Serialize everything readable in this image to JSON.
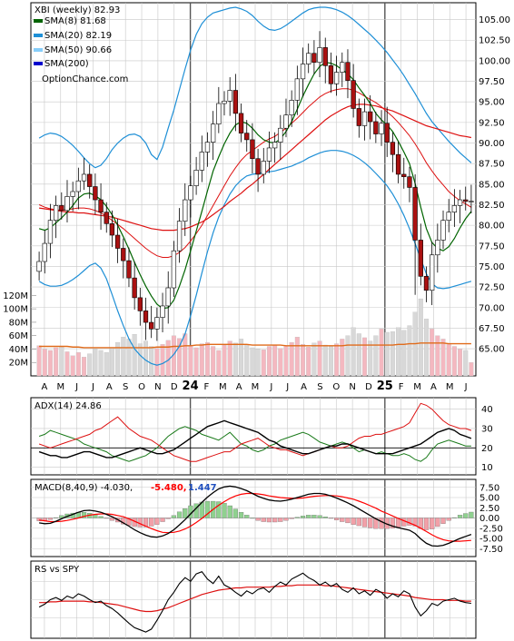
{
  "chart_data": [
    {
      "type": "candlestick",
      "panel": "price",
      "title": "XBI (weekly) 82.93",
      "watermark": "OptionChance.com",
      "legend_placement": "top-left",
      "legend": [
        {
          "label": "SMA(8) 81.68",
          "color": "#006400"
        },
        {
          "label": "SMA(20) 82.19",
          "color": "#1e8fd6"
        },
        {
          "label": "SMA(50) 90.66",
          "color": "#87cefa"
        },
        {
          "label": "SMA(200)",
          "color": "#0000cd"
        }
      ],
      "x_tick_labels": [
        "A",
        "M",
        "J",
        "J",
        "A",
        "S",
        "O",
        "N",
        "D",
        "24",
        "F",
        "M",
        "A",
        "M",
        "J",
        "J",
        "A",
        "S",
        "O",
        "N",
        "D",
        "25",
        "F",
        "M",
        "A",
        "M",
        "J"
      ],
      "y_tick_labels": [
        "65.00",
        "67.50",
        "70.00",
        "72.50",
        "75.00",
        "77.50",
        "80.00",
        "82.50",
        "85.00",
        "87.50",
        "90.00",
        "92.50",
        "95.00",
        "97.50",
        "100.00",
        "102.50",
        "105.00"
      ],
      "ylim": [
        62.8,
        106.5
      ],
      "grid": true,
      "close": [
        75.6,
        77.8,
        80.6,
        82.4,
        81.8,
        83.5,
        84.1,
        85.4,
        86.2,
        84.7,
        83.1,
        81.6,
        80.2,
        78.8,
        77.2,
        75.7,
        73.6,
        71.2,
        69.6,
        68.2,
        67.4,
        68.8,
        70.2,
        72.4,
        76.9,
        80.5,
        83.1,
        84.8,
        86.7,
        88.9,
        90.1,
        92.3,
        94.8,
        95.1,
        96.4,
        93.6,
        91.2,
        90.4,
        88.1,
        86.2,
        87.8,
        89.4,
        90.1,
        91.8,
        93.4,
        95.2,
        97.8,
        99.6,
        100.9,
        99.8,
        101.6,
        99.4,
        97.2,
        98.6,
        99.8,
        97.6,
        94.2,
        92.1,
        93.8,
        92.6,
        91.1,
        92.4,
        90.1,
        88.6,
        86.2,
        85.9,
        84.6,
        78.2,
        73.8,
        72.1,
        76.4,
        78.2,
        80.6,
        81.6,
        82.4,
        83.1,
        82.9,
        82.93
      ],
      "sma8": [
        79.6,
        79.4,
        79.7,
        80.3,
        80.9,
        81.6,
        82.4,
        83.3,
        83.8,
        83.9,
        83.6,
        83.1,
        82.3,
        81.3,
        80.0,
        78.6,
        77.1,
        75.5,
        74.0,
        72.6,
        71.4,
        70.4,
        69.9,
        70.0,
        70.9,
        72.6,
        74.6,
        76.9,
        79.3,
        81.7,
        84.2,
        86.6,
        88.3,
        89.9,
        91.2,
        92.2,
        92.6,
        92.4,
        91.8,
        91.0,
        90.4,
        90.1,
        90.0,
        90.5,
        91.4,
        92.6,
        94.1,
        95.7,
        97.1,
        98.4,
        99.3,
        99.8,
        99.7,
        99.4,
        98.9,
        98.4,
        97.7,
        96.7,
        95.8,
        94.8,
        93.6,
        92.8,
        92.2,
        91.4,
        90.2,
        88.9,
        87.5,
        85.1,
        82.2,
        79.6,
        77.9,
        77.2,
        76.9,
        77.4,
        78.4,
        79.7,
        80.8,
        81.68
      ],
      "sma20": [
        82.5,
        82.2,
        82.0,
        81.9,
        81.8,
        81.9,
        82.0,
        82.1,
        82.1,
        82.0,
        81.8,
        81.5,
        81.1,
        80.6,
        80.1,
        79.6,
        79.0,
        78.4,
        77.8,
        77.2,
        76.7,
        76.3,
        76.1,
        76.1,
        76.3,
        76.7,
        77.3,
        78.1,
        79.0,
        80.0,
        81.2,
        82.4,
        83.6,
        84.8,
        86.0,
        87.0,
        87.9,
        88.6,
        89.1,
        89.6,
        90.1,
        90.5,
        90.8,
        91.3,
        91.8,
        92.4,
        93.0,
        93.7,
        94.4,
        95.0,
        95.6,
        96.0,
        96.3,
        96.5,
        96.6,
        96.6,
        96.4,
        96.1,
        95.7,
        95.3,
        94.9,
        94.4,
        93.8,
        93.2,
        92.5,
        91.7,
        90.9,
        89.9,
        88.8,
        87.6,
        86.6,
        85.7,
        84.9,
        84.1,
        83.5,
        83.0,
        82.6,
        82.19
      ],
      "sma50": [
        82.1,
        82.0,
        81.9,
        81.8,
        81.7,
        81.6,
        81.6,
        81.5,
        81.5,
        81.4,
        81.3,
        81.2,
        81.1,
        81.0,
        80.8,
        80.6,
        80.4,
        80.2,
        80.0,
        79.8,
        79.6,
        79.5,
        79.4,
        79.4,
        79.4,
        79.5,
        79.6,
        79.8,
        80.1,
        80.4,
        80.8,
        81.3,
        81.8,
        82.3,
        82.9,
        83.4,
        83.9,
        84.5,
        85.0,
        85.6,
        86.2,
        86.8,
        87.4,
        88.0,
        88.6,
        89.2,
        89.8,
        90.4,
        91.0,
        91.6,
        92.2,
        92.8,
        93.3,
        93.7,
        94.1,
        94.4,
        94.6,
        94.7,
        94.7,
        94.6,
        94.5,
        94.3,
        94.1,
        93.9,
        93.6,
        93.3,
        93.0,
        92.7,
        92.4,
        92.1,
        91.9,
        91.7,
        91.5,
        91.3,
        91.1,
        90.9,
        90.8,
        90.66
      ],
      "bb_upper": [
        90.6,
        91.0,
        91.2,
        91.1,
        90.8,
        90.3,
        89.7,
        89.0,
        88.2,
        87.5,
        87.0,
        87.3,
        88.1,
        89.2,
        90.0,
        90.6,
        91.0,
        91.1,
        90.8,
        90.0,
        88.6,
        88.0,
        89.5,
        91.8,
        94.0,
        96.5,
        99.0,
        101.3,
        103.2,
        104.5,
        105.3,
        105.8,
        106.0,
        106.2,
        106.4,
        106.5,
        106.3,
        106.0,
        105.5,
        104.8,
        104.2,
        103.8,
        103.7,
        103.9,
        104.3,
        104.8,
        105.3,
        105.8,
        106.2,
        106.4,
        106.5,
        106.5,
        106.4,
        106.2,
        105.9,
        105.5,
        105.0,
        104.4,
        103.8,
        103.2,
        102.5,
        101.8,
        101.0,
        100.1,
        99.2,
        98.2,
        97.1,
        96.0,
        94.8,
        93.6,
        92.6,
        91.8,
        91.0,
        90.2,
        89.5,
        88.8,
        88.2,
        87.6
      ],
      "bb_lower": [
        73.2,
        72.8,
        72.6,
        72.6,
        72.7,
        73.0,
        73.4,
        73.9,
        74.5,
        75.1,
        75.4,
        74.8,
        73.5,
        71.6,
        69.6,
        67.8,
        66.2,
        65.0,
        64.2,
        63.6,
        63.2,
        63.0,
        63.2,
        63.6,
        64.3,
        65.3,
        66.8,
        69.0,
        71.5,
        74.2,
        76.8,
        79.1,
        81.0,
        82.5,
        83.8,
        84.8,
        85.5,
        86.0,
        86.2,
        86.3,
        86.4,
        86.5,
        86.6,
        86.8,
        87.0,
        87.2,
        87.5,
        87.8,
        88.2,
        88.5,
        88.8,
        89.0,
        89.1,
        89.1,
        89.0,
        88.8,
        88.5,
        88.1,
        87.6,
        87.0,
        86.3,
        85.6,
        84.8,
        83.8,
        82.6,
        81.2,
        79.6,
        77.8,
        75.9,
        74.1,
        72.9,
        72.4,
        72.3,
        72.4,
        72.6,
        72.8,
        73.0,
        73.2
      ]
    },
    {
      "type": "bar",
      "panel": "volume",
      "y_tick_labels": [
        "20M",
        "40M",
        "60M",
        "80M",
        "100M",
        "120M"
      ],
      "ylim": [
        0,
        130
      ],
      "volume_millions": [
        45,
        40,
        38,
        42,
        44,
        36,
        30,
        35,
        28,
        33,
        40,
        38,
        35,
        42,
        50,
        58,
        55,
        62,
        48,
        52,
        44,
        41,
        47,
        53,
        60,
        56,
        63,
        45,
        42,
        48,
        50,
        44,
        38,
        46,
        52,
        49,
        55,
        47,
        42,
        40,
        39,
        44,
        46,
        41,
        45,
        50,
        58,
        47,
        43,
        49,
        52,
        46,
        44,
        48,
        55,
        60,
        72,
        63,
        57,
        52,
        60,
        70,
        65,
        66,
        72,
        68,
        75,
        95,
        115,
        85,
        70,
        60,
        55,
        48,
        44,
        40,
        38,
        20
      ],
      "volume_sma": [
        44,
        44,
        44,
        44,
        44,
        44,
        43,
        43,
        42,
        42,
        42,
        42,
        42,
        42,
        42,
        42,
        42,
        42,
        42,
        42,
        42,
        43,
        43,
        43,
        44,
        44,
        45,
        45,
        46,
        46,
        47,
        47,
        47,
        47,
        47,
        47,
        47,
        47,
        46,
        46,
        46,
        46,
        46,
        46,
        45,
        45,
        45,
        45,
        45,
        45,
        45,
        45,
        45,
        45,
        45,
        46,
        46,
        46,
        46,
        46,
        46,
        46,
        46,
        46,
        47,
        47,
        48,
        48,
        49,
        49,
        49,
        49,
        49,
        48,
        48,
        48,
        48,
        48
      ]
    },
    {
      "type": "line",
      "panel": "adx",
      "title": "ADX(14) 24.86",
      "y_tick_labels": [
        "10",
        "20",
        "30",
        "40"
      ],
      "ylim": [
        7,
        45
      ],
      "adx": [
        18,
        17,
        16,
        16,
        15,
        15,
        16,
        17,
        18,
        18,
        17,
        16,
        15,
        15,
        16,
        17,
        18,
        19,
        20,
        19,
        18,
        17,
        17,
        18,
        19,
        21,
        23,
        25,
        27,
        29,
        31,
        32,
        33,
        34,
        33,
        32,
        31,
        30,
        29,
        28,
        26,
        24,
        23,
        21,
        20,
        19,
        18,
        17,
        17,
        18,
        19,
        20,
        21,
        21,
        22,
        22,
        21,
        20,
        19,
        18,
        17,
        17,
        17,
        17,
        18,
        19,
        20,
        21,
        22,
        24,
        26,
        28,
        29,
        30,
        29,
        27,
        26,
        24.86
      ],
      "plus_di": [
        26,
        27,
        29,
        28,
        27,
        26,
        25,
        24,
        22,
        21,
        20,
        19,
        18,
        16,
        15,
        14,
        13,
        14,
        15,
        16,
        18,
        20,
        23,
        26,
        28,
        30,
        31,
        30,
        29,
        27,
        26,
        25,
        24,
        26,
        28,
        25,
        22,
        21,
        19,
        18,
        19,
        21,
        22,
        24,
        25,
        26,
        27,
        28,
        27,
        25,
        23,
        22,
        21,
        22,
        23,
        22,
        20,
        18,
        19,
        18,
        17,
        18,
        17,
        16,
        16,
        17,
        16,
        14,
        13,
        15,
        19,
        22,
        23,
        24,
        23,
        22,
        21,
        21
      ],
      "minus_di": [
        22,
        21,
        20,
        21,
        22,
        23,
        24,
        25,
        26,
        27,
        29,
        30,
        32,
        34,
        36,
        33,
        30,
        28,
        26,
        25,
        24,
        22,
        20,
        18,
        16,
        15,
        14,
        13,
        13,
        14,
        15,
        16,
        17,
        18,
        18,
        20,
        22,
        23,
        24,
        25,
        23,
        21,
        20,
        19,
        19,
        18,
        17,
        16,
        17,
        18,
        19,
        20,
        21,
        20,
        20,
        21,
        23,
        25,
        26,
        26,
        27,
        27,
        28,
        29,
        30,
        31,
        33,
        38,
        43,
        42,
        40,
        37,
        34,
        32,
        31,
        30,
        30,
        29
      ]
    },
    {
      "type": "line",
      "panel": "macd",
      "title": "MACD(8,40,9) -4.030,",
      "signal_label": "-5.480,",
      "hist_label": "1.447",
      "signal_color": "#ff0000",
      "hist_color": "#1f4fbf",
      "y_tick_labels": [
        "7.50",
        "5.00",
        "2.50",
        "0.00",
        "-2.50",
        "-5.00",
        "-7.50"
      ],
      "ylim": [
        -9,
        9
      ],
      "macd": [
        -1.2,
        -1.4,
        -1.3,
        -0.8,
        -0.2,
        0.4,
        0.9,
        1.4,
        1.8,
        1.9,
        1.7,
        1.4,
        0.9,
        0.3,
        -0.4,
        -1.2,
        -2.0,
        -2.9,
        -3.6,
        -4.2,
        -4.6,
        -4.7,
        -4.4,
        -3.8,
        -2.9,
        -1.7,
        -0.4,
        1.0,
        2.4,
        3.8,
        5.1,
        6.2,
        7.1,
        7.6,
        7.8,
        7.6,
        7.2,
        6.7,
        6.0,
        5.3,
        4.8,
        4.4,
        4.2,
        4.1,
        4.3,
        4.6,
        5.0,
        5.4,
        5.8,
        6.0,
        6.0,
        5.8,
        5.4,
        4.9,
        4.3,
        3.7,
        3.0,
        2.2,
        1.4,
        0.6,
        -0.2,
        -0.9,
        -1.5,
        -2.0,
        -2.4,
        -2.7,
        -3.0,
        -3.8,
        -5.1,
        -6.2,
        -6.8,
        -6.9,
        -6.7,
        -6.2,
        -5.6,
        -5.0,
        -4.5,
        -4.03
      ],
      "signal": [
        -0.5,
        -0.7,
        -0.9,
        -0.9,
        -0.8,
        -0.6,
        -0.3,
        0.0,
        0.4,
        0.7,
        0.9,
        1.0,
        1.0,
        0.9,
        0.6,
        0.3,
        -0.2,
        -0.8,
        -1.4,
        -2.0,
        -2.6,
        -3.1,
        -3.5,
        -3.6,
        -3.5,
        -3.2,
        -2.7,
        -2.0,
        -1.1,
        -0.1,
        1.0,
        2.1,
        3.1,
        4.0,
        4.8,
        5.4,
        5.8,
        6.0,
        6.0,
        5.9,
        5.7,
        5.4,
        5.2,
        5.0,
        4.9,
        4.8,
        4.8,
        4.9,
        5.1,
        5.3,
        5.4,
        5.5,
        5.5,
        5.4,
        5.2,
        4.9,
        4.6,
        4.1,
        3.6,
        3.0,
        2.4,
        1.7,
        1.1,
        0.5,
        -0.1,
        -0.7,
        -1.2,
        -1.8,
        -2.5,
        -3.3,
        -4.1,
        -4.8,
        -5.3,
        -5.6,
        -5.7,
        -5.7,
        -5.6,
        -5.48
      ],
      "histogram": [
        -0.7,
        -0.7,
        -0.4,
        0.1,
        0.6,
        1.0,
        1.2,
        1.4,
        1.4,
        1.2,
        0.8,
        0.4,
        -0.1,
        -0.6,
        -1.0,
        -1.5,
        -1.8,
        -2.1,
        -2.2,
        -2.2,
        -2.0,
        -1.6,
        -0.9,
        -0.2,
        0.6,
        1.5,
        2.3,
        3.0,
        3.5,
        3.9,
        4.1,
        4.1,
        4.0,
        3.6,
        3.0,
        2.2,
        1.4,
        0.7,
        0.0,
        -0.6,
        -0.9,
        -1.0,
        -1.0,
        -0.9,
        -0.6,
        -0.2,
        0.2,
        0.5,
        0.7,
        0.7,
        0.6,
        0.3,
        -0.1,
        -0.5,
        -0.9,
        -1.2,
        -1.6,
        -1.9,
        -2.2,
        -2.4,
        -2.6,
        -2.6,
        -2.6,
        -2.5,
        -2.3,
        -2.0,
        -1.8,
        -2.0,
        -2.6,
        -2.9,
        -2.7,
        -2.1,
        -1.4,
        -0.6,
        0.1,
        0.7,
        1.1,
        1.447
      ]
    },
    {
      "type": "line",
      "panel": "relative_strength",
      "title": "RS vs SPY",
      "rs": [
        0.4,
        0.44,
        0.5,
        0.53,
        0.49,
        0.55,
        0.52,
        0.58,
        0.55,
        0.5,
        0.46,
        0.48,
        0.42,
        0.38,
        0.32,
        0.25,
        0.18,
        0.12,
        0.09,
        0.06,
        0.1,
        0.22,
        0.35,
        0.5,
        0.6,
        0.72,
        0.8,
        0.75,
        0.85,
        0.88,
        0.78,
        0.72,
        0.82,
        0.7,
        0.66,
        0.6,
        0.55,
        0.62,
        0.58,
        0.64,
        0.66,
        0.6,
        0.68,
        0.74,
        0.7,
        0.78,
        0.82,
        0.86,
        0.8,
        0.76,
        0.7,
        0.74,
        0.68,
        0.72,
        0.64,
        0.6,
        0.66,
        0.58,
        0.62,
        0.56,
        0.64,
        0.6,
        0.52,
        0.58,
        0.54,
        0.62,
        0.58,
        0.4,
        0.28,
        0.35,
        0.45,
        0.42,
        0.48,
        0.5,
        0.52,
        0.48,
        0.46,
        0.45
      ],
      "rs_ma": [
        0.46,
        0.46,
        0.47,
        0.47,
        0.48,
        0.48,
        0.48,
        0.48,
        0.48,
        0.47,
        0.47,
        0.46,
        0.45,
        0.44,
        0.43,
        0.41,
        0.39,
        0.37,
        0.35,
        0.34,
        0.34,
        0.35,
        0.37,
        0.39,
        0.42,
        0.45,
        0.48,
        0.51,
        0.54,
        0.57,
        0.59,
        0.61,
        0.63,
        0.64,
        0.65,
        0.66,
        0.66,
        0.67,
        0.67,
        0.67,
        0.67,
        0.67,
        0.68,
        0.68,
        0.69,
        0.69,
        0.7,
        0.7,
        0.7,
        0.7,
        0.7,
        0.69,
        0.69,
        0.68,
        0.67,
        0.66,
        0.65,
        0.64,
        0.63,
        0.62,
        0.61,
        0.6,
        0.59,
        0.58,
        0.57,
        0.56,
        0.55,
        0.53,
        0.52,
        0.51,
        0.5,
        0.5,
        0.5,
        0.49,
        0.49,
        0.49,
        0.48,
        0.48
      ]
    }
  ],
  "colors": {
    "sma8": "#006400",
    "sma20": "#1e8fd6",
    "sma50_bollinger": "#66b3f2",
    "sma200": "#dd1111",
    "up_candle": "#ffffff",
    "down_candle": "#aa1111",
    "volume_up": "#f4b8c0",
    "volume_down": "#d8d8d8",
    "volume_sma": "#e06b1a",
    "adx": "#000000",
    "plus_di": "#1a7a1a",
    "minus_di": "#dd1111",
    "macd": "#000000",
    "signal": "#ff0000",
    "rs": "#000000",
    "rs_ma": "#dd1111",
    "grid": "#c8c8c8"
  }
}
